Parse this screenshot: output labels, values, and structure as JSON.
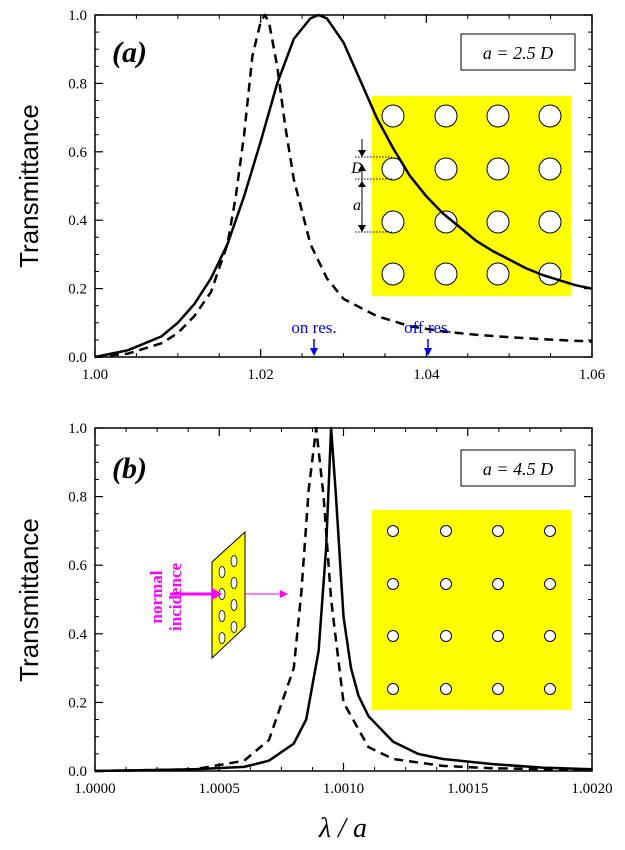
{
  "chart_data": [
    {
      "panel_label": "(a)",
      "type": "line",
      "xlim": [
        1.0,
        1.06
      ],
      "ylim": [
        0,
        1.0
      ],
      "xticks": [
        "1.00",
        "1.02",
        "1.04",
        "1.06"
      ],
      "yticks": [
        "0.0",
        "0.2",
        "0.4",
        "0.6",
        "0.8",
        "1.0"
      ],
      "ylabel": "Transmittance",
      "legend_box": "a = 2.5 D",
      "series": [
        {
          "style": "solid",
          "x": [
            1.0,
            1.004,
            1.008,
            1.01,
            1.012,
            1.014,
            1.016,
            1.018,
            1.02,
            1.022,
            1.024,
            1.026,
            1.027,
            1.028,
            1.03,
            1.032,
            1.034,
            1.036,
            1.038,
            1.04,
            1.042,
            1.044,
            1.046,
            1.048,
            1.05,
            1.052,
            1.054,
            1.056,
            1.058,
            1.06
          ],
          "y": [
            0.0,
            0.02,
            0.06,
            0.1,
            0.155,
            0.23,
            0.33,
            0.47,
            0.63,
            0.8,
            0.93,
            0.99,
            1.0,
            0.99,
            0.92,
            0.81,
            0.7,
            0.61,
            0.53,
            0.47,
            0.42,
            0.38,
            0.34,
            0.31,
            0.285,
            0.26,
            0.24,
            0.225,
            0.21,
            0.2
          ]
        },
        {
          "style": "dashed",
          "x": [
            1.0,
            1.004,
            1.008,
            1.01,
            1.012,
            1.014,
            1.016,
            1.017,
            1.018,
            1.019,
            1.02,
            1.0205,
            1.021,
            1.022,
            1.023,
            1.024,
            1.026,
            1.028,
            1.03,
            1.034,
            1.038,
            1.042,
            1.046,
            1.05,
            1.054,
            1.06
          ],
          "y": [
            0.0,
            0.01,
            0.04,
            0.07,
            0.12,
            0.19,
            0.33,
            0.47,
            0.65,
            0.88,
            0.98,
            1.0,
            0.98,
            0.85,
            0.67,
            0.52,
            0.33,
            0.23,
            0.17,
            0.12,
            0.09,
            0.075,
            0.065,
            0.058,
            0.052,
            0.045
          ]
        }
      ],
      "annotations": [
        {
          "text": "on res.",
          "x": 1.0265,
          "color": "#0000ff"
        },
        {
          "text": "off res.",
          "x": 1.0403,
          "color": "#0000ff"
        }
      ],
      "inset": {
        "lattice_size": "4x4",
        "circle": "large",
        "labels": [
          "D",
          "a"
        ]
      }
    },
    {
      "panel_label": "(b)",
      "type": "line",
      "xlim": [
        1.0,
        1.002
      ],
      "ylim": [
        0,
        1.0
      ],
      "xticks": [
        "1.0000",
        "1.0005",
        "1.0010",
        "1.0015",
        "1.0020"
      ],
      "yticks": [
        "0.0",
        "0.2",
        "0.4",
        "0.6",
        "0.8",
        "1.0"
      ],
      "xlabel": "λ / a",
      "ylabel": "Transmittance",
      "legend_box": "a = 4.5 D",
      "series": [
        {
          "style": "solid",
          "x": [
            1.0,
            1.0004,
            1.0006,
            1.0007,
            1.0008,
            1.00085,
            1.0009,
            1.00093,
            1.00095,
            1.00097,
            1.001,
            1.00103,
            1.00106,
            1.0011,
            1.0012,
            1.0013,
            1.0014,
            1.0016,
            1.0018,
            1.002
          ],
          "y": [
            0.0,
            0.005,
            0.012,
            0.03,
            0.08,
            0.15,
            0.35,
            0.65,
            1.0,
            0.8,
            0.45,
            0.3,
            0.22,
            0.16,
            0.085,
            0.05,
            0.035,
            0.02,
            0.01,
            0.005
          ]
        },
        {
          "style": "dashed",
          "x": [
            1.0,
            1.0004,
            1.0006,
            1.0007,
            1.0008,
            1.00083,
            1.00086,
            1.00089,
            1.00092,
            1.00095,
            1.001,
            1.0011,
            1.0012,
            1.0014,
            1.0016,
            1.002
          ],
          "y": [
            0.0,
            0.005,
            0.03,
            0.09,
            0.3,
            0.52,
            0.82,
            1.0,
            0.8,
            0.5,
            0.2,
            0.07,
            0.035,
            0.015,
            0.008,
            0.003
          ]
        }
      ],
      "annotations": [
        {
          "text": "normal",
          "color": "#ff00ff"
        },
        {
          "text": "incidence",
          "color": "#ff00ff"
        }
      ],
      "inset": {
        "lattice_size": "4x4",
        "circle": "small"
      }
    }
  ]
}
